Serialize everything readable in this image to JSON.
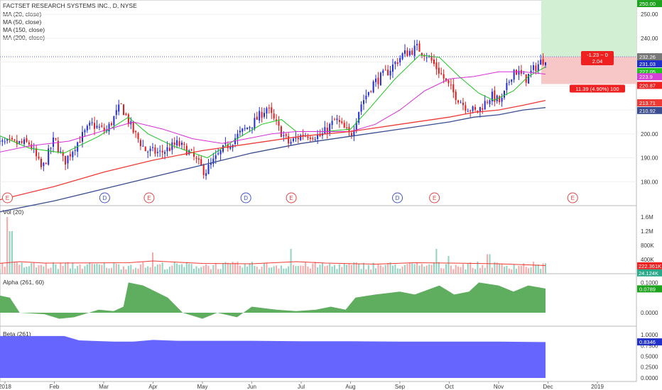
{
  "chart_data": [
    {
      "type": "candlestick",
      "title": "FACTSET RESEARCH SYSTEMS INC., D, NYSE",
      "legend": [
        "MA (20, close)",
        "MA (50, close)",
        "MA (150, close)",
        "MA (200, close)"
      ],
      "ylim": [
        170,
        256
      ],
      "y_ticks": [
        180,
        190,
        200,
        210,
        220,
        230,
        240,
        250
      ],
      "x_tick_labels": [
        "2018",
        "Feb",
        "Mar",
        "Apr",
        "May",
        "Jun",
        "Jul",
        "Aug",
        "Sep",
        "Oct",
        "Nov",
        "Dec",
        "2019"
      ],
      "x_tick_months": [
        0,
        1,
        2,
        3,
        4,
        5,
        6,
        7,
        8,
        9,
        10,
        11,
        12
      ],
      "closes": [
        [
          0.5,
          196
        ],
        [
          0.75,
          185
        ],
        [
          1.0,
          198
        ],
        [
          1.2,
          188
        ],
        [
          1.45,
          196
        ],
        [
          1.75,
          204
        ],
        [
          2.05,
          201
        ],
        [
          2.35,
          212
        ],
        [
          2.6,
          201
        ],
        [
          2.85,
          193
        ],
        [
          3.15,
          192
        ],
        [
          3.5,
          196
        ],
        [
          3.75,
          192
        ],
        [
          4.05,
          184
        ],
        [
          4.4,
          193
        ],
        [
          4.75,
          200
        ],
        [
          5.05,
          205
        ],
        [
          5.3,
          211
        ],
        [
          5.55,
          202
        ],
        [
          5.75,
          196
        ],
        [
          6.05,
          200
        ],
        [
          6.4,
          199
        ],
        [
          6.7,
          206
        ],
        [
          7.0,
          199
        ],
        [
          7.2,
          212
        ],
        [
          7.45,
          221
        ],
        [
          7.75,
          226
        ],
        [
          8.05,
          233
        ],
        [
          8.35,
          236
        ],
        [
          8.55,
          233
        ],
        [
          8.8,
          226
        ],
        [
          9.05,
          218
        ],
        [
          9.3,
          212
        ],
        [
          9.55,
          209
        ],
        [
          9.85,
          216
        ],
        [
          10.05,
          213
        ],
        [
          10.3,
          227
        ],
        [
          10.55,
          223
        ],
        [
          10.75,
          228
        ],
        [
          10.95,
          232
        ]
      ],
      "series": [
        {
          "name": "MA (20, close)",
          "color": "#1ec51e",
          "points": [
            [
              -0.2,
              200
            ],
            [
              0.5,
              194
            ],
            [
              1.2,
              192
            ],
            [
              1.9,
              199
            ],
            [
              2.5,
              207
            ],
            [
              2.9,
              200
            ],
            [
              3.4,
              195
            ],
            [
              4.1,
              190
            ],
            [
              4.7,
              198
            ],
            [
              5.2,
              204
            ],
            [
              5.6,
              206
            ],
            [
              5.9,
              201
            ],
            [
              6.5,
              201
            ],
            [
              7.0,
              202
            ],
            [
              7.4,
              211
            ],
            [
              7.9,
              223
            ],
            [
              8.4,
              233
            ],
            [
              8.8,
              232
            ],
            [
              9.2,
              224
            ],
            [
              9.6,
              217
            ],
            [
              9.9,
              214
            ],
            [
              10.3,
              218
            ],
            [
              10.6,
              224
            ],
            [
              10.95,
              228
            ]
          ]
        },
        {
          "name": "MA (50, close)",
          "color": "#d62fd6",
          "points": [
            [
              -0.2,
              192
            ],
            [
              0.5,
              195
            ],
            [
              1.3,
              197
            ],
            [
              2.1,
              202
            ],
            [
              2.6,
              205
            ],
            [
              3.2,
              202
            ],
            [
              3.8,
              198
            ],
            [
              4.4,
              196
            ],
            [
              4.9,
              198
            ],
            [
              5.4,
              200
            ],
            [
              5.9,
              201
            ],
            [
              6.5,
              201
            ],
            [
              7.0,
              201
            ],
            [
              7.5,
              204
            ],
            [
              8.0,
              210
            ],
            [
              8.5,
              218
            ],
            [
              9.0,
              223
            ],
            [
              9.5,
              224
            ],
            [
              10.0,
              226
            ],
            [
              10.5,
              226
            ],
            [
              10.95,
              225
            ]
          ]
        },
        {
          "name": "MA (150, close)",
          "color": "#ee3a35",
          "points": [
            [
              -0.2,
              172
            ],
            [
              1.0,
              178
            ],
            [
              2.0,
              184
            ],
            [
              3.0,
              189
            ],
            [
              4.0,
              193
            ],
            [
              5.0,
              196
            ],
            [
              6.0,
              199
            ],
            [
              7.0,
              201
            ],
            [
              8.0,
              204
            ],
            [
              9.0,
              207
            ],
            [
              9.5,
              209
            ],
            [
              10.0,
              210
            ],
            [
              10.5,
              212
            ],
            [
              10.95,
              214
            ]
          ]
        },
        {
          "name": "MA (200, close)",
          "color": "#3a4d8f",
          "points": [
            [
              -0.2,
              167
            ],
            [
              1.0,
              172
            ],
            [
              2.0,
              177
            ],
            [
              3.0,
              182
            ],
            [
              4.0,
              187
            ],
            [
              5.0,
              192
            ],
            [
              6.0,
              196
            ],
            [
              7.0,
              199
            ],
            [
              8.0,
              202
            ],
            [
              9.0,
              205
            ],
            [
              9.5,
              207
            ],
            [
              10.0,
              208
            ],
            [
              10.5,
              210
            ],
            [
              10.95,
              211
            ]
          ]
        }
      ],
      "price_tags": [
        {
          "value": "250.00",
          "y": 254.5,
          "bg": "#1ea31e"
        },
        {
          "value": "232.26",
          "y": 232.26,
          "bg": "#777777"
        },
        {
          "value": "231.03",
          "y": 229.3,
          "bg": "#2030c8"
        },
        {
          "value": "227.05",
          "y": 226.1,
          "bg": "#22c022"
        },
        {
          "value": "223.9",
          "y": 223.9,
          "bg": "#d640d6"
        },
        {
          "value": "220.87",
          "y": 220.3,
          "bg": "#ee2020"
        },
        {
          "value": "213.71",
          "y": 213.0,
          "bg": "#ee3a35"
        },
        {
          "value": "210.92",
          "y": 209.8,
          "bg": "#3a4d8f"
        }
      ],
      "events": [
        {
          "label": "E",
          "kind": "earnings",
          "x": 0.05
        },
        {
          "label": "D",
          "kind": "dividend",
          "x": 2.02
        },
        {
          "label": "E",
          "kind": "earnings",
          "x": 2.92
        },
        {
          "label": "D",
          "kind": "dividend",
          "x": 4.88
        },
        {
          "label": "E",
          "kind": "earnings",
          "x": 5.8
        },
        {
          "label": "D",
          "kind": "dividend",
          "x": 7.95
        },
        {
          "label": "E",
          "kind": "earnings",
          "x": 8.7
        },
        {
          "label": "E",
          "kind": "earnings",
          "x": 11.5
        }
      ],
      "position": {
        "entry": 232.26,
        "target_top": 256,
        "stop": 220.87,
        "risk_label_line1": "-1.23 ~ 0",
        "risk_label_line2": "2.04",
        "stop_label": "11.39 (4.90%) 100"
      }
    },
    {
      "type": "bar",
      "legend": [
        "Vol (20)"
      ],
      "ylim": [
        0,
        1800000
      ],
      "y_ticks": [
        400000,
        800000,
        1200000,
        1600000
      ],
      "y_tick_labels": [
        "400K",
        "800K",
        "1.2M",
        "1.6M"
      ],
      "value_tags": [
        {
          "value": "222.361K",
          "y": 222361,
          "bg": "#ee2020"
        },
        {
          "value": "24.124K",
          "y": 24124,
          "bg": "#2aa88a"
        }
      ],
      "ma_levels": [
        [
          -0.2,
          280000
        ],
        [
          0.3,
          340000
        ],
        [
          0.8,
          300000
        ],
        [
          2.5,
          310000
        ],
        [
          3.0,
          360000
        ],
        [
          4.0,
          290000
        ],
        [
          5.0,
          280000
        ],
        [
          5.9,
          340000
        ],
        [
          6.5,
          300000
        ],
        [
          7.5,
          270000
        ],
        [
          8.3,
          310000
        ],
        [
          9.0,
          300000
        ],
        [
          10.0,
          280000
        ],
        [
          10.95,
          230000
        ]
      ],
      "spikes": [
        [
          0.06,
          1600000
        ],
        [
          0.12,
          1200000
        ],
        [
          3.0,
          600000
        ],
        [
          5.8,
          700000
        ],
        [
          8.75,
          700000
        ],
        [
          9.0,
          500000
        ],
        [
          9.8,
          550000
        ]
      ],
      "color_up": "#8fd3c0",
      "color_down": "#f7a8a8",
      "ma_color": "#ee3a35"
    },
    {
      "type": "area",
      "legend": [
        "Alpha (261, 60)"
      ],
      "ylim": [
        -0.04,
        0.115
      ],
      "y_ticks": [
        0.0,
        0.1
      ],
      "y_tick_labels": [
        "0.0000",
        "0.1000"
      ],
      "value_tags": [
        {
          "value": "0.0789",
          "y": 0.0789,
          "bg": "#1ea31e"
        }
      ],
      "fill_color": "#5fad5f",
      "points": [
        [
          -0.2,
          0.06
        ],
        [
          0.1,
          0.05
        ],
        [
          0.3,
          0.0
        ],
        [
          0.8,
          -0.005
        ],
        [
          1.1,
          -0.02
        ],
        [
          1.4,
          -0.015
        ],
        [
          1.9,
          0.01
        ],
        [
          2.2,
          0.005
        ],
        [
          2.4,
          0.02
        ],
        [
          2.5,
          0.1
        ],
        [
          2.8,
          0.09
        ],
        [
          3.3,
          0.05
        ],
        [
          3.6,
          0.0
        ],
        [
          4.0,
          -0.02
        ],
        [
          4.3,
          0.0
        ],
        [
          4.7,
          -0.015
        ],
        [
          5.0,
          0.02
        ],
        [
          5.5,
          0.01
        ],
        [
          5.9,
          0.005
        ],
        [
          6.3,
          0.01
        ],
        [
          6.6,
          0.02
        ],
        [
          6.9,
          0.01
        ],
        [
          7.1,
          0.05
        ],
        [
          7.5,
          0.06
        ],
        [
          8.0,
          0.07
        ],
        [
          8.3,
          0.06
        ],
        [
          8.8,
          0.09
        ],
        [
          9.1,
          0.06
        ],
        [
          9.4,
          0.07
        ],
        [
          9.6,
          0.1
        ],
        [
          10.0,
          0.09
        ],
        [
          10.3,
          0.07
        ],
        [
          10.6,
          0.09
        ],
        [
          10.95,
          0.08
        ]
      ]
    },
    {
      "type": "area",
      "legend": [
        "Beta (261)"
      ],
      "ylim": [
        -0.05,
        1.1
      ],
      "y_ticks": [
        0.0,
        0.25,
        0.5,
        0.75,
        1.0
      ],
      "y_tick_labels": [
        "0.0000",
        "0.2500",
        "0.5000",
        "0.7500",
        "1.0000"
      ],
      "value_tags": [
        {
          "value": "0.8346",
          "y": 0.8346,
          "bg": "#2030c8"
        }
      ],
      "fill_color": "#6666ff",
      "points": [
        [
          -0.2,
          0.97
        ],
        [
          1.2,
          0.97
        ],
        [
          1.5,
          0.87
        ],
        [
          2.2,
          0.84
        ],
        [
          2.6,
          0.84
        ],
        [
          3.0,
          0.88
        ],
        [
          3.5,
          0.86
        ],
        [
          4.0,
          0.86
        ],
        [
          5.0,
          0.86
        ],
        [
          6.0,
          0.85
        ],
        [
          7.0,
          0.85
        ],
        [
          8.0,
          0.84
        ],
        [
          9.0,
          0.84
        ],
        [
          10.0,
          0.84
        ],
        [
          10.95,
          0.83
        ]
      ]
    }
  ]
}
